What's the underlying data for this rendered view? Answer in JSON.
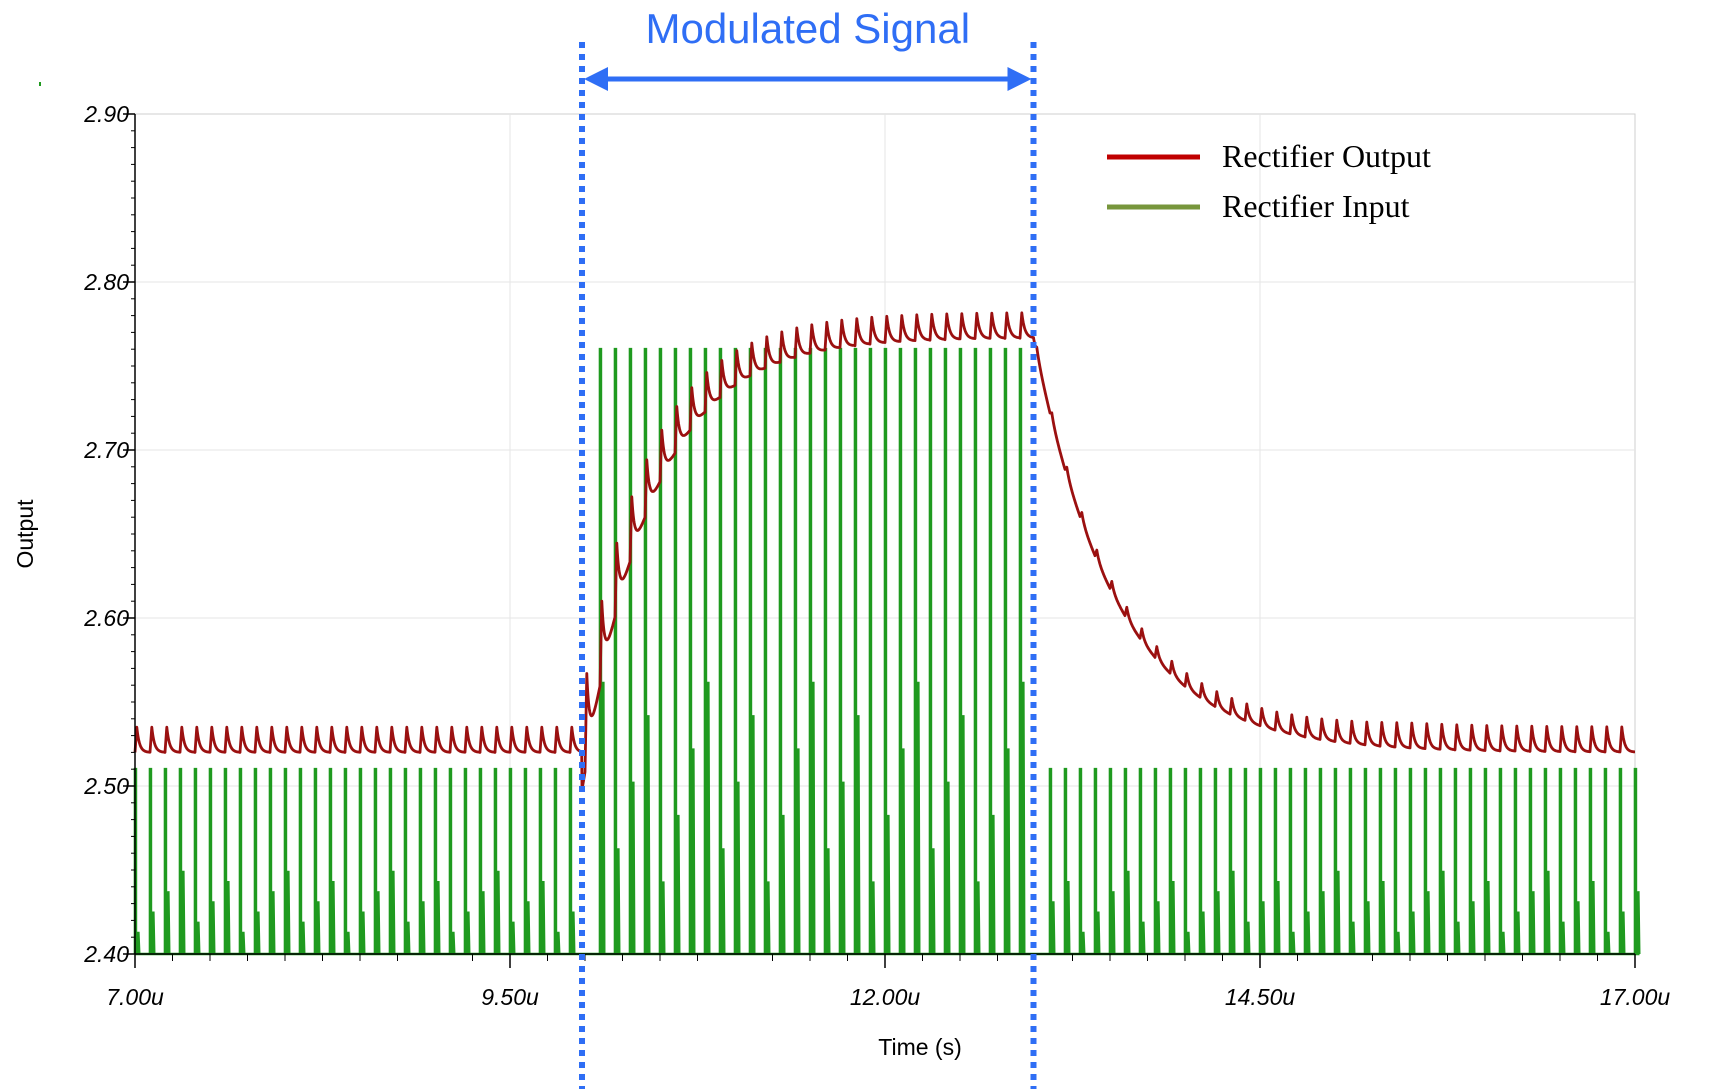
{
  "chart_data": {
    "type": "line",
    "title": "",
    "xlabel": "Time (s)",
    "ylabel": "Output",
    "xlim": [
      7.0,
      17.0
    ],
    "ylim": [
      2.4,
      2.9
    ],
    "x_unit": "u",
    "x_ticks": [
      7.0,
      9.5,
      12.0,
      14.5,
      17.0
    ],
    "x_tick_labels": [
      "7.00u",
      "9.50u",
      "12.00u",
      "14.50u",
      "17.00u"
    ],
    "y_ticks": [
      2.4,
      2.5,
      2.6,
      2.7,
      2.8,
      2.9
    ],
    "y_tick_labels": [
      "2.40",
      "2.50",
      "2.60",
      "2.70",
      "2.80",
      "2.90"
    ],
    "grid": true,
    "legend_position": "top-right",
    "annotation": {
      "text": "Modulated Signal",
      "x_start": 9.98,
      "x_end": 12.99,
      "color": "#2f6ef5"
    },
    "series": [
      {
        "name": "Rectifier Output",
        "color": "#9b1010",
        "legend_color": "#c00000",
        "kind": "ripple",
        "baseline": 2.52,
        "ripple": 0.015,
        "peak": 2.767,
        "rise_start": 9.98,
        "rise_end": 12.99,
        "x_end": 17.0
      },
      {
        "name": "Rectifier Input",
        "color": "#1f9a1f",
        "legend_color": "#77963c",
        "kind": "pulses",
        "floor": 2.4,
        "low_level": 2.51,
        "high_level": 2.76,
        "pulse_period": 0.1,
        "high_start": 10.04,
        "high_end": 12.96
      }
    ]
  }
}
